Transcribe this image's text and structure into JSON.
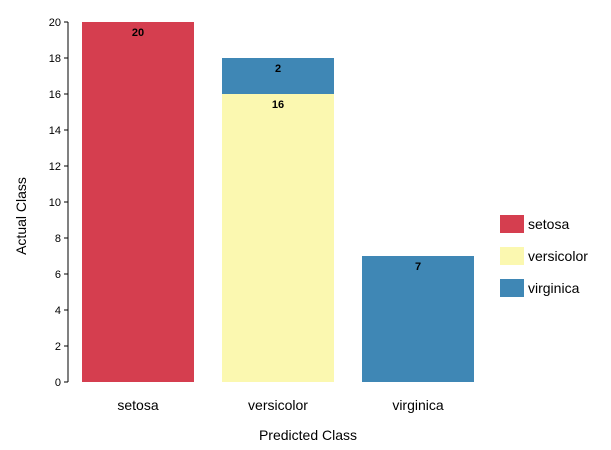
{
  "chart_data": {
    "type": "bar",
    "stacked": true,
    "xlabel": "Predicted Class",
    "ylabel": "Actual Class",
    "categories": [
      "setosa",
      "versicolor",
      "virginica"
    ],
    "ylim": [
      0,
      20
    ],
    "yticks": [
      0,
      2,
      4,
      6,
      8,
      10,
      12,
      14,
      16,
      18,
      20
    ],
    "series": [
      {
        "name": "setosa",
        "color": "#d53e4f",
        "values": [
          20,
          0,
          0
        ]
      },
      {
        "name": "versicolor",
        "color": "#fbf8b0",
        "values": [
          0,
          16,
          0
        ]
      },
      {
        "name": "virginica",
        "color": "#3f87b5",
        "values": [
          0,
          2,
          7
        ]
      }
    ],
    "legend_position": "right",
    "grid": false
  }
}
